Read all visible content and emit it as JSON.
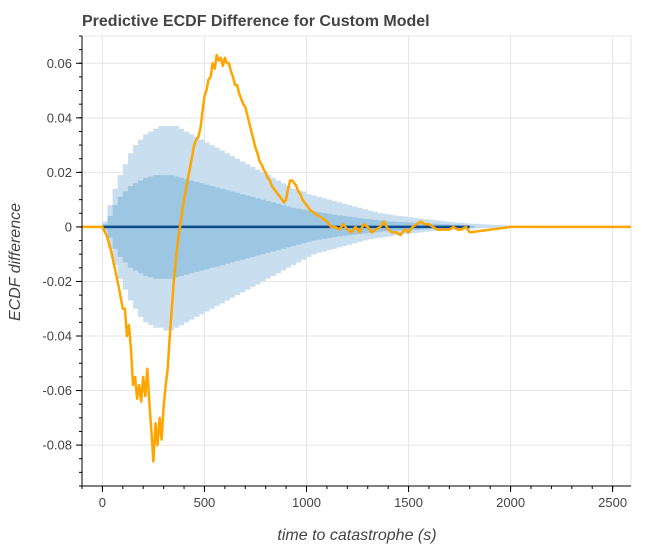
{
  "chart_data": {
    "type": "line",
    "title": "Predictive ECDF Difference for Custom Model",
    "xlabel": "time to catastrophe (s)",
    "ylabel": "ECDF difference",
    "xlim": [
      -100,
      2590
    ],
    "ylim": [
      -0.095,
      0.07
    ],
    "x_ticks": [
      0,
      500,
      1000,
      1500,
      2000,
      2500
    ],
    "y_ticks": [
      -0.08,
      -0.06,
      -0.04,
      -0.02,
      0,
      0.02,
      0.04,
      0.06
    ],
    "x_tick_labels": [
      "0",
      "500",
      "1000",
      "1500",
      "2000",
      "2500"
    ],
    "y_tick_labels": [
      "-0.08",
      "-0.06",
      "-0.04",
      "-0.02",
      "0",
      "0.02",
      "0.04",
      "0.06"
    ],
    "grid": true,
    "colors": {
      "outer_band": "#c9deef",
      "inner_band": "#9cc6e1",
      "median": "#0e4a8e",
      "ecdf_line": "#ffa500"
    },
    "outer_band": {
      "x": [
        0,
        25,
        50,
        75,
        100,
        125,
        150,
        175,
        200,
        225,
        250,
        275,
        300,
        325,
        350,
        375,
        400,
        425,
        450,
        475,
        500,
        525,
        550,
        575,
        600,
        625,
        650,
        675,
        700,
        725,
        750,
        775,
        800,
        825,
        850,
        875,
        900,
        925,
        950,
        975,
        1000,
        1025,
        1050,
        1075,
        1100,
        1125,
        1150,
        1175,
        1200,
        1225,
        1250,
        1275,
        1300,
        1325,
        1350,
        1375,
        1400,
        1425,
        1450,
        1475,
        1500,
        1525,
        1550,
        1575,
        1600,
        1625,
        1650,
        1675,
        1700,
        1725,
        1750,
        1775,
        1800,
        1825,
        1850,
        1875,
        1900,
        1925,
        1950,
        1975,
        2000,
        2100,
        2200,
        2300,
        2400,
        2450
      ],
      "upper": [
        0.002,
        0.008,
        0.014,
        0.019,
        0.023,
        0.027,
        0.03,
        0.032,
        0.034,
        0.035,
        0.036,
        0.037,
        0.037,
        0.037,
        0.037,
        0.036,
        0.035,
        0.034,
        0.033,
        0.032,
        0.031,
        0.03,
        0.029,
        0.028,
        0.027,
        0.026,
        0.025,
        0.024,
        0.023,
        0.022,
        0.021,
        0.02,
        0.019,
        0.018,
        0.017,
        0.016,
        0.015,
        0.014,
        0.0135,
        0.013,
        0.012,
        0.0115,
        0.011,
        0.0105,
        0.01,
        0.0095,
        0.009,
        0.0085,
        0.008,
        0.0075,
        0.007,
        0.0065,
        0.006,
        0.0055,
        0.005,
        0.0048,
        0.0045,
        0.0042,
        0.004,
        0.0038,
        0.0035,
        0.0033,
        0.003,
        0.0028,
        0.0026,
        0.0024,
        0.0022,
        0.002,
        0.0018,
        0.0016,
        0.0015,
        0.0013,
        0.0012,
        0.0011,
        0.001,
        0.0009,
        0.0008,
        0.0007,
        0.0006,
        0.0005,
        0.0004,
        0.0003,
        0.0002,
        0.0001,
        0.0001,
        0.0
      ],
      "lower": [
        -0.002,
        -0.008,
        -0.014,
        -0.019,
        -0.023,
        -0.027,
        -0.03,
        -0.033,
        -0.035,
        -0.036,
        -0.037,
        -0.037,
        -0.038,
        -0.038,
        -0.037,
        -0.036,
        -0.035,
        -0.034,
        -0.033,
        -0.032,
        -0.031,
        -0.03,
        -0.029,
        -0.028,
        -0.027,
        -0.026,
        -0.025,
        -0.024,
        -0.023,
        -0.022,
        -0.021,
        -0.02,
        -0.019,
        -0.018,
        -0.017,
        -0.016,
        -0.015,
        -0.014,
        -0.013,
        -0.012,
        -0.011,
        -0.01,
        -0.0095,
        -0.009,
        -0.0085,
        -0.008,
        -0.0075,
        -0.007,
        -0.0065,
        -0.006,
        -0.0055,
        -0.005,
        -0.0045,
        -0.0042,
        -0.004,
        -0.0037,
        -0.0034,
        -0.0031,
        -0.0028,
        -0.0026,
        -0.0024,
        -0.0022,
        -0.002,
        -0.0018,
        -0.0016,
        -0.0014,
        -0.0013,
        -0.0012,
        -0.0011,
        -0.001,
        -0.0009,
        -0.0008,
        -0.0007,
        -0.0006,
        -0.0005,
        -0.0004,
        -0.0004,
        -0.0003,
        -0.0003,
        -0.0002,
        -0.0002,
        -0.0001,
        -0.0001,
        -0.0001,
        0.0,
        0.0
      ]
    },
    "inner_band": {
      "x": [
        0,
        25,
        50,
        75,
        100,
        125,
        150,
        175,
        200,
        225,
        250,
        275,
        300,
        325,
        350,
        375,
        400,
        425,
        450,
        475,
        500,
        525,
        550,
        575,
        600,
        625,
        650,
        675,
        700,
        725,
        750,
        775,
        800,
        825,
        850,
        875,
        900,
        925,
        950,
        975,
        1000,
        1025,
        1050,
        1075,
        1100,
        1125,
        1150,
        1175,
        1200,
        1225,
        1250,
        1275,
        1300,
        1325,
        1350,
        1375,
        1400,
        1425,
        1450,
        1475,
        1500,
        1525,
        1550,
        1575,
        1600,
        1650,
        1700,
        1750,
        1800
      ],
      "upper": [
        0.001,
        0.004,
        0.008,
        0.011,
        0.013,
        0.015,
        0.016,
        0.017,
        0.018,
        0.0185,
        0.019,
        0.019,
        0.019,
        0.019,
        0.0185,
        0.018,
        0.0175,
        0.017,
        0.0165,
        0.016,
        0.0155,
        0.015,
        0.0145,
        0.014,
        0.0135,
        0.013,
        0.0125,
        0.012,
        0.0115,
        0.011,
        0.0105,
        0.01,
        0.0095,
        0.009,
        0.0085,
        0.008,
        0.0075,
        0.007,
        0.0067,
        0.0064,
        0.006,
        0.0057,
        0.0054,
        0.0051,
        0.0048,
        0.0045,
        0.0042,
        0.004,
        0.0037,
        0.0035,
        0.0032,
        0.003,
        0.0028,
        0.0026,
        0.0024,
        0.0022,
        0.002,
        0.0019,
        0.0018,
        0.0017,
        0.0016,
        0.0015,
        0.0014,
        0.0013,
        0.0012,
        0.001,
        0.0008,
        0.0006,
        0.0004
      ],
      "lower": [
        -0.001,
        -0.004,
        -0.008,
        -0.011,
        -0.013,
        -0.015,
        -0.016,
        -0.017,
        -0.018,
        -0.0185,
        -0.019,
        -0.019,
        -0.019,
        -0.019,
        -0.0185,
        -0.018,
        -0.0175,
        -0.017,
        -0.0165,
        -0.016,
        -0.0155,
        -0.015,
        -0.0145,
        -0.014,
        -0.0135,
        -0.013,
        -0.0125,
        -0.012,
        -0.0115,
        -0.011,
        -0.0105,
        -0.01,
        -0.0095,
        -0.009,
        -0.0085,
        -0.008,
        -0.0075,
        -0.007,
        -0.0065,
        -0.006,
        -0.0055,
        -0.005,
        -0.0047,
        -0.0044,
        -0.0041,
        -0.0038,
        -0.0035,
        -0.0032,
        -0.003,
        -0.0028,
        -0.0026,
        -0.0024,
        -0.0022,
        -0.002,
        -0.0018,
        -0.0016,
        -0.0015,
        -0.0014,
        -0.0013,
        -0.0012,
        -0.0011,
        -0.001,
        -0.0009,
        -0.0008,
        -0.0007,
        -0.0006,
        -0.0005,
        -0.0004,
        -0.0003
      ]
    },
    "series": [
      {
        "x": [
          -100,
          2590
        ],
        "y": [
          0,
          0
        ]
      },
      {
        "x": [
          -100,
          0,
          20,
          40,
          60,
          80,
          100,
          110,
          120,
          130,
          140,
          150,
          160,
          170,
          180,
          190,
          200,
          210,
          220,
          230,
          240,
          250,
          260,
          270,
          280,
          290,
          300,
          310,
          320,
          330,
          340,
          350,
          360,
          370,
          380,
          390,
          400,
          410,
          420,
          430,
          440,
          450,
          460,
          470,
          480,
          490,
          500,
          510,
          520,
          530,
          540,
          550,
          560,
          570,
          580,
          590,
          600,
          610,
          620,
          630,
          640,
          650,
          660,
          670,
          680,
          690,
          700,
          710,
          720,
          730,
          740,
          750,
          760,
          770,
          780,
          790,
          800,
          810,
          820,
          830,
          840,
          850,
          860,
          870,
          880,
          890,
          900,
          910,
          920,
          930,
          940,
          950,
          960,
          970,
          980,
          990,
          1000,
          1020,
          1040,
          1060,
          1080,
          1100,
          1120,
          1140,
          1160,
          1180,
          1200,
          1220,
          1240,
          1260,
          1280,
          1300,
          1320,
          1340,
          1360,
          1380,
          1400,
          1420,
          1440,
          1460,
          1480,
          1500,
          1520,
          1540,
          1560,
          1580,
          1600,
          1620,
          1640,
          1660,
          1680,
          1700,
          1720,
          1740,
          1760,
          1780,
          1800,
          2000,
          2200,
          2400,
          2590
        ],
        "y": [
          0,
          0,
          -0.003,
          -0.008,
          -0.015,
          -0.022,
          -0.03,
          -0.03,
          -0.04,
          -0.036,
          -0.045,
          -0.058,
          -0.055,
          -0.063,
          -0.058,
          -0.064,
          -0.055,
          -0.062,
          -0.052,
          -0.064,
          -0.075,
          -0.086,
          -0.072,
          -0.08,
          -0.07,
          -0.078,
          -0.066,
          -0.058,
          -0.052,
          -0.04,
          -0.03,
          -0.02,
          -0.012,
          -0.005,
          0.0,
          0.005,
          0.01,
          0.014,
          0.018,
          0.022,
          0.026,
          0.03,
          0.032,
          0.033,
          0.036,
          0.042,
          0.048,
          0.05,
          0.054,
          0.055,
          0.06,
          0.058,
          0.063,
          0.061,
          0.062,
          0.059,
          0.062,
          0.06,
          0.06,
          0.057,
          0.055,
          0.052,
          0.052,
          0.049,
          0.047,
          0.045,
          0.044,
          0.041,
          0.038,
          0.035,
          0.032,
          0.029,
          0.027,
          0.024,
          0.023,
          0.021,
          0.02,
          0.018,
          0.017,
          0.015,
          0.014,
          0.013,
          0.012,
          0.011,
          0.01,
          0.009,
          0.01,
          0.014,
          0.017,
          0.017,
          0.016,
          0.015,
          0.013,
          0.012,
          0.01,
          0.009,
          0.008,
          0.006,
          0.005,
          0.004,
          0.003,
          0.002,
          0.0,
          0.0,
          -0.001,
          0.001,
          -0.001,
          -0.002,
          0.0,
          -0.002,
          0.001,
          0.0,
          -0.002,
          -0.001,
          0.0,
          0.002,
          -0.001,
          -0.002,
          -0.002,
          -0.003,
          -0.001,
          -0.002,
          0.0,
          0.001,
          0.002,
          0.001,
          0.001,
          0.0,
          -0.001,
          -0.001,
          -0.001,
          -0.001,
          0.0,
          -0.001,
          -0.001,
          0.0,
          -0.002,
          0.0,
          0.0,
          0.0,
          0.0
        ]
      }
    ]
  }
}
